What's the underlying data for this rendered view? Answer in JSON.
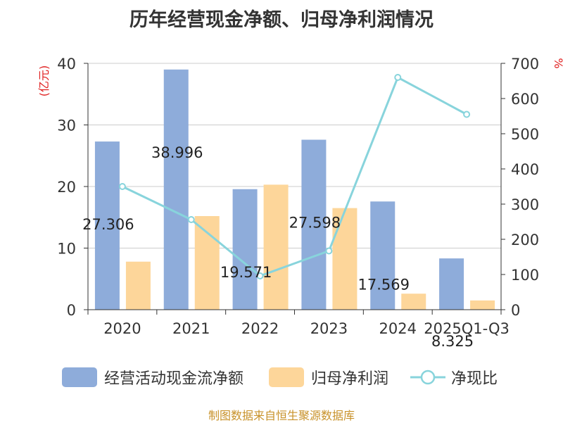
{
  "title": "历年经营现金净额、归母净利润情况",
  "left_unit": "(亿元)",
  "right_unit": "%",
  "source": "制图数据来自恒生聚源数据库",
  "colors": {
    "bar1": "#8eacda",
    "bar2": "#fdd69a",
    "line": "#88d4dc",
    "axis_unit": "#e02020",
    "text": "#333333"
  },
  "chart_data": {
    "type": "bar",
    "categories": [
      "2020",
      "2021",
      "2022",
      "2023",
      "2024",
      "2025Q1-Q3"
    ],
    "series": [
      {
        "name": "经营活动现金流净额",
        "type": "bar",
        "axis": "left",
        "values": [
          27.306,
          38.996,
          19.571,
          27.598,
          17.569,
          8.325
        ]
      },
      {
        "name": "归母净利润",
        "type": "bar",
        "axis": "left",
        "values": [
          7.8,
          15.2,
          20.3,
          16.5,
          2.6,
          1.5
        ]
      },
      {
        "name": "净现比",
        "type": "line",
        "axis": "right",
        "values": [
          350,
          256,
          96,
          167,
          660,
          555
        ]
      }
    ],
    "data_labels": [
      "27.306",
      "38.996",
      "19.571",
      "27.598",
      "17.569",
      "8.325"
    ],
    "y_left": {
      "min": 0,
      "max": 40,
      "ticks": [
        0,
        10,
        20,
        30,
        40
      ]
    },
    "y_right": {
      "min": 0,
      "max": 700,
      "ticks": [
        0,
        100,
        200,
        300,
        400,
        500,
        600,
        700
      ]
    },
    "grid": true,
    "legend_position": "bottom"
  }
}
